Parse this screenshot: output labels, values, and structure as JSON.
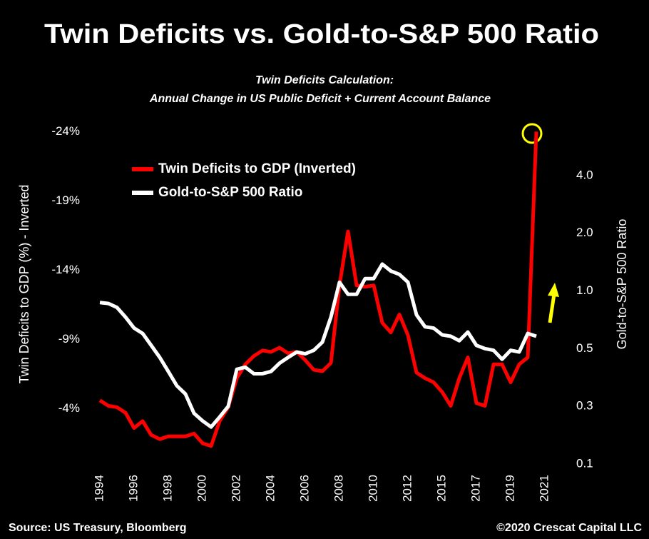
{
  "chart_data": {
    "type": "line",
    "title": "Twin Deficits vs. Gold-to-S&P 500 Ratio",
    "subtitle": [
      "Twin Deficits Calculation:",
      "Annual Change in US Public Deficit + Current Account Balance"
    ],
    "y_label": "Twin Deficits to GDP (%) - Inverted",
    "y2_label": "Gold-to-S&P 500 Ratio",
    "source": "Source: US Treasury, Bloomberg",
    "copyright": "©2020 Crescat Capital LLC",
    "legend": "upper left",
    "categories": [
      "1994",
      null,
      null,
      null,
      "1996",
      null,
      null,
      null,
      "1998",
      null,
      null,
      null,
      "2000",
      null,
      null,
      null,
      "2002",
      null,
      null,
      null,
      "2004",
      null,
      null,
      null,
      "2006",
      null,
      null,
      null,
      "2008",
      null,
      null,
      null,
      "2010",
      null,
      null,
      null,
      "2012",
      null,
      null,
      null,
      "2015",
      null,
      null,
      null,
      "2017",
      null,
      null,
      null,
      "2019",
      null,
      null,
      null,
      "2021"
    ],
    "ylim": [
      0,
      -25
    ],
    "yticks": [
      {
        "value": -24,
        "label": "-24%"
      },
      {
        "value": -19,
        "label": "-19%"
      },
      {
        "value": -14,
        "label": "-14%"
      },
      {
        "value": -9,
        "label": "-9%"
      },
      {
        "value": -4,
        "label": "-4%"
      }
    ],
    "y2lim": [
      0.125,
      8
    ],
    "y2log": true,
    "y2ticks": [
      {
        "value": 0.125,
        "label": "0.1"
      },
      {
        "value": 0.25,
        "label": "0.3"
      },
      0.5,
      {
        "value": 1,
        "label": "1.0"
      },
      {
        "value": 2,
        "label": "2.0"
      },
      {
        "value": 4,
        "label": "4.0"
      }
    ],
    "series": [
      {
        "name": "Twin Deficits to GDP (Inverted)",
        "color": "#ff0000",
        "values": [
          -4.6,
          -4.2,
          -4.1,
          -3.7,
          -2.6,
          -3.1,
          -2.1,
          -1.8,
          -2.0,
          -2.0,
          -2.0,
          -2.2,
          -1.5,
          -1.3,
          -3.1,
          -4.1,
          -6.2,
          -7.2,
          -7.8,
          -8.2,
          -8.1,
          -8.4,
          -8.0,
          -8.1,
          -7.5,
          -6.8,
          -6.7,
          -7.3,
          -12.9,
          -16.8,
          -12.9,
          -12.8,
          -12.9,
          -10.2,
          -9.5,
          -10.8,
          -9.3,
          -6.6,
          -6.2,
          -5.9,
          -5.2,
          -4.2,
          -6.2,
          -7.7,
          -4.4,
          -4.2,
          -7.2,
          -7.2,
          -5.9,
          -7.2,
          -7.7,
          -24,
          null
        ]
      },
      {
        "name": "Gold-to-S&P 500 Ratio",
        "color": "#ffffff",
        "axis": "y2",
        "values": [
          0.87,
          0.86,
          0.82,
          0.73,
          0.64,
          0.6,
          0.52,
          0.45,
          0.38,
          0.32,
          0.29,
          0.23,
          0.21,
          0.195,
          0.22,
          0.25,
          0.39,
          0.4,
          0.37,
          0.37,
          0.38,
          0.42,
          0.45,
          0.48,
          0.47,
          0.49,
          0.54,
          0.73,
          1.11,
          0.96,
          0.96,
          1.16,
          1.16,
          1.38,
          1.27,
          1.22,
          1.11,
          0.75,
          0.65,
          0.64,
          0.59,
          0.58,
          0.55,
          0.61,
          0.52,
          0.5,
          0.49,
          0.44,
          0.49,
          0.48,
          0.6,
          0.58,
          null
        ]
      }
    ]
  }
}
